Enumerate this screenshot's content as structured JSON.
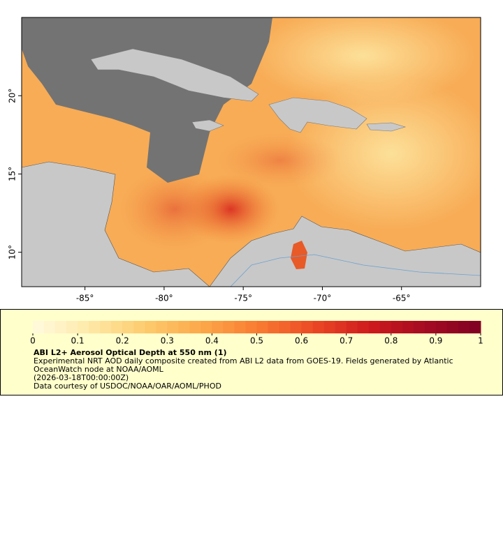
{
  "map": {
    "xlim": [
      -89,
      -60
    ],
    "ylim": [
      7.8,
      25
    ],
    "xticks": [
      {
        "value": -85,
        "label": "-85°"
      },
      {
        "value": -80,
        "label": "-80°"
      },
      {
        "value": -75,
        "label": "-75°"
      },
      {
        "value": -70,
        "label": "-70°"
      },
      {
        "value": -65,
        "label": "-65°"
      }
    ],
    "yticks": [
      {
        "value": 10,
        "label": "10°"
      },
      {
        "value": 15,
        "label": "15°"
      },
      {
        "value": 20,
        "label": "20°"
      }
    ]
  },
  "legend": {
    "colorbar": {
      "lim": [
        0,
        1
      ],
      "ticks": [
        0,
        0.1,
        0.2,
        0.3,
        0.4,
        0.5,
        0.6,
        0.7,
        0.8,
        0.9,
        1
      ],
      "colors": [
        "#fffbe0",
        "#fee9a8",
        "#fdcb6e",
        "#fca84a",
        "#f97c32",
        "#ec4a26",
        "#cf1b1d",
        "#a50b22",
        "#7f0022"
      ]
    },
    "title": "ABI L2+ Aerosol Optical Depth at 550 nm (1)",
    "description": "Experimental NRT AOD daily composite created from ABI L2 data from GOES-19. Fields generated by Atlantic OceanWatch node at NOAA/AOML",
    "time": "(2026-03-18T00:00:00Z)",
    "credit": "Data courtesy of USDOC/NOAA/OAR/AOML/PHOD"
  }
}
